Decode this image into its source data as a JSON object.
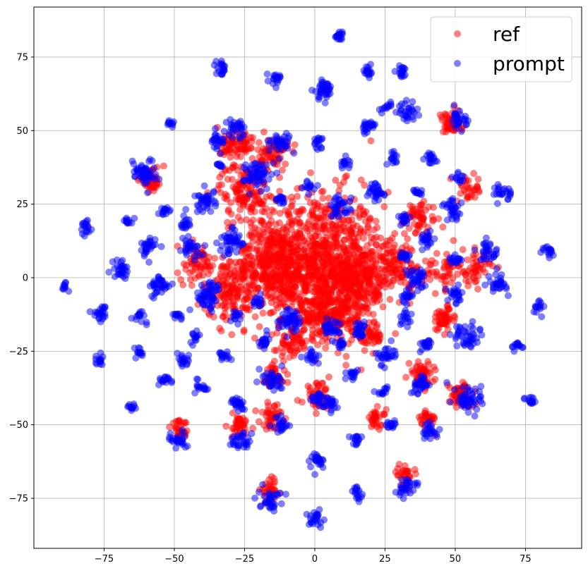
{
  "chart_data": {
    "type": "scatter",
    "title": "",
    "xlabel": "",
    "ylabel": "",
    "xlim": [
      -100,
      95
    ],
    "ylim": [
      -92,
      92
    ],
    "grid": true,
    "legend_position": "top-right",
    "x_ticks": [
      -75,
      -50,
      -25,
      0,
      25,
      50,
      75
    ],
    "y_ticks": [
      -75,
      -50,
      -25,
      0,
      25,
      50,
      75
    ],
    "x_tick_labels": [
      "−75",
      "−50",
      "−25",
      "0",
      "25",
      "50",
      "75"
    ],
    "y_tick_labels": [
      "−75",
      "−50",
      "−25",
      "0",
      "25",
      "50",
      "75"
    ],
    "series": [
      {
        "name": "ref",
        "color": "#ff0000",
        "alpha": 0.5,
        "clusters": [
          {
            "x": 0,
            "y": 5,
            "r": 22,
            "n": 900
          },
          {
            "x": -15,
            "y": 5,
            "r": 12,
            "n": 300
          },
          {
            "x": 15,
            "y": 0,
            "r": 12,
            "n": 300
          },
          {
            "x": 5,
            "y": -12,
            "r": 10,
            "n": 200
          },
          {
            "x": -25,
            "y": 30,
            "r": 8,
            "n": 120
          },
          {
            "x": -28,
            "y": 45,
            "r": 6,
            "n": 80
          },
          {
            "x": -15,
            "y": 42,
            "r": 5,
            "n": 60
          },
          {
            "x": -30,
            "y": -5,
            "r": 9,
            "n": 120
          },
          {
            "x": -42,
            "y": 5,
            "r": 6,
            "n": 60
          },
          {
            "x": 30,
            "y": 5,
            "r": 7,
            "n": 80
          },
          {
            "x": 37,
            "y": 20,
            "r": 6,
            "n": 60
          },
          {
            "x": 45,
            "y": 3,
            "r": 6,
            "n": 50
          },
          {
            "x": 48,
            "y": 52,
            "r": 4,
            "n": 50
          },
          {
            "x": 52,
            "y": -40,
            "r": 4,
            "n": 60
          },
          {
            "x": 57,
            "y": 3,
            "r": 5,
            "n": 50
          },
          {
            "x": 46,
            "y": -14,
            "r": 4,
            "n": 50
          },
          {
            "x": 38,
            "y": -33,
            "r": 4,
            "n": 50
          },
          {
            "x": -15,
            "y": -47,
            "r": 4,
            "n": 40
          },
          {
            "x": -27,
            "y": -50,
            "r": 4,
            "n": 40
          },
          {
            "x": -15,
            "y": -34,
            "r": 4,
            "n": 40
          },
          {
            "x": -58,
            "y": 33,
            "r": 4,
            "n": 40
          },
          {
            "x": 22,
            "y": -48,
            "r": 3,
            "n": 30
          },
          {
            "x": 32,
            "y": -67,
            "r": 3,
            "n": 30
          },
          {
            "x": -16,
            "y": -72,
            "r": 3,
            "n": 30
          },
          {
            "x": 1,
            "y": -40,
            "r": 4,
            "n": 40
          },
          {
            "x": 40,
            "y": -48,
            "r": 3,
            "n": 30
          },
          {
            "x": 55,
            "y": 30,
            "r": 4,
            "n": 30
          },
          {
            "x": -48,
            "y": -52,
            "r": 3,
            "n": 30
          },
          {
            "x": -8,
            "y": -22,
            "r": 5,
            "n": 50
          },
          {
            "x": 20,
            "y": -20,
            "r": 4,
            "n": 40
          }
        ]
      },
      {
        "name": "prompt",
        "color": "#0000ff",
        "alpha": 0.5,
        "clusters": [
          {
            "x": 9,
            "y": 82,
            "r": 1.5,
            "n": 18
          },
          {
            "x": -33,
            "y": 71,
            "r": 2,
            "n": 20
          },
          {
            "x": -14,
            "y": 68,
            "r": 1.8,
            "n": 18
          },
          {
            "x": 19,
            "y": 70,
            "r": 1.8,
            "n": 18
          },
          {
            "x": 31,
            "y": 70,
            "r": 1.8,
            "n": 18
          },
          {
            "x": 3,
            "y": 64,
            "r": 3.2,
            "n": 40
          },
          {
            "x": 33,
            "y": 56,
            "r": 2.8,
            "n": 30
          },
          {
            "x": 26,
            "y": 58,
            "r": 1.6,
            "n": 12
          },
          {
            "x": 51,
            "y": 54,
            "r": 2.8,
            "n": 30
          },
          {
            "x": -51,
            "y": 52,
            "r": 1.4,
            "n": 10
          },
          {
            "x": -28,
            "y": 51,
            "r": 2.8,
            "n": 30
          },
          {
            "x": -35,
            "y": 47,
            "r": 2.5,
            "n": 24
          },
          {
            "x": 19,
            "y": 51,
            "r": 2.5,
            "n": 24
          },
          {
            "x": -12,
            "y": 46,
            "r": 3.2,
            "n": 36
          },
          {
            "x": 1,
            "y": 46,
            "r": 1.8,
            "n": 16
          },
          {
            "x": 28,
            "y": 41,
            "r": 1.8,
            "n": 14
          },
          {
            "x": 41,
            "y": 41,
            "r": 2.2,
            "n": 18
          },
          {
            "x": -61,
            "y": 36,
            "r": 4,
            "n": 50
          },
          {
            "x": -20,
            "y": 35,
            "r": 4.5,
            "n": 60
          },
          {
            "x": 11,
            "y": 39,
            "r": 1.8,
            "n": 14
          },
          {
            "x": 51,
            "y": 34,
            "r": 1.6,
            "n": 12
          },
          {
            "x": -34,
            "y": 38,
            "r": 1.4,
            "n": 10
          },
          {
            "x": 22,
            "y": 29,
            "r": 3,
            "n": 30
          },
          {
            "x": 37,
            "y": 29,
            "r": 1.6,
            "n": 12
          },
          {
            "x": 67,
            "y": 29,
            "r": 2.5,
            "n": 24
          },
          {
            "x": -39,
            "y": 26,
            "r": 3.5,
            "n": 40
          },
          {
            "x": -2,
            "y": 31,
            "r": 1.8,
            "n": 14
          },
          {
            "x": -12,
            "y": 26,
            "r": 1.8,
            "n": 14
          },
          {
            "x": 9,
            "y": 24,
            "r": 3.5,
            "n": 36
          },
          {
            "x": 49,
            "y": 23,
            "r": 3.2,
            "n": 32
          },
          {
            "x": -53,
            "y": 23,
            "r": 1.8,
            "n": 14
          },
          {
            "x": 32,
            "y": 20,
            "r": 2,
            "n": 16
          },
          {
            "x": -82,
            "y": 17,
            "r": 2.2,
            "n": 18
          },
          {
            "x": -66,
            "y": 19,
            "r": 1.6,
            "n": 12
          },
          {
            "x": -46,
            "y": 18,
            "r": 2,
            "n": 16
          },
          {
            "x": -30,
            "y": 12,
            "r": 4,
            "n": 44
          },
          {
            "x": -44,
            "y": 10,
            "r": 3,
            "n": 30
          },
          {
            "x": -60,
            "y": 10,
            "r": 3,
            "n": 30
          },
          {
            "x": 40,
            "y": 13,
            "r": 2.5,
            "n": 24
          },
          {
            "x": 62,
            "y": 9,
            "r": 3,
            "n": 30
          },
          {
            "x": 83,
            "y": 9,
            "r": 2,
            "n": 16
          },
          {
            "x": -69,
            "y": 3,
            "r": 3,
            "n": 30
          },
          {
            "x": 32,
            "y": 7,
            "r": 2,
            "n": 16
          },
          {
            "x": 50,
            "y": 6,
            "r": 2,
            "n": 16
          },
          {
            "x": -55,
            "y": -3,
            "r": 3.2,
            "n": 36
          },
          {
            "x": -38,
            "y": -6,
            "r": 4.5,
            "n": 56
          },
          {
            "x": 36,
            "y": 0,
            "r": 3.2,
            "n": 34
          },
          {
            "x": 65,
            "y": -2,
            "r": 3,
            "n": 30
          },
          {
            "x": -89,
            "y": -3,
            "r": 1.4,
            "n": 10
          },
          {
            "x": 50,
            "y": -6,
            "r": 2.5,
            "n": 24
          },
          {
            "x": -20,
            "y": -8,
            "r": 1.8,
            "n": 14
          },
          {
            "x": 33,
            "y": -6,
            "r": 2.2,
            "n": 18
          },
          {
            "x": 79,
            "y": -10,
            "r": 2,
            "n": 14
          },
          {
            "x": -76,
            "y": -12,
            "r": 2.5,
            "n": 24
          },
          {
            "x": -8,
            "y": -14,
            "r": 4,
            "n": 44
          },
          {
            "x": -28,
            "y": -13,
            "r": 1.8,
            "n": 14
          },
          {
            "x": 32,
            "y": -14,
            "r": 2,
            "n": 16
          },
          {
            "x": -62,
            "y": -13,
            "r": 2,
            "n": 16
          },
          {
            "x": 6,
            "y": -17,
            "r": 3,
            "n": 30
          },
          {
            "x": 16,
            "y": -18,
            "r": 2.5,
            "n": 24
          },
          {
            "x": 54,
            "y": -20,
            "r": 4,
            "n": 44
          },
          {
            "x": -49,
            "y": -13,
            "r": 1.6,
            "n": 12
          },
          {
            "x": -43,
            "y": -20,
            "r": 2,
            "n": 14
          },
          {
            "x": 72,
            "y": -23,
            "r": 1.8,
            "n": 14
          },
          {
            "x": -18,
            "y": -22,
            "r": 2.2,
            "n": 18
          },
          {
            "x": 9,
            "y": -23,
            "r": 1.6,
            "n": 12
          },
          {
            "x": 40,
            "y": -23,
            "r": 2.2,
            "n": 18
          },
          {
            "x": -62,
            "y": -25,
            "r": 1.8,
            "n": 14
          },
          {
            "x": -47,
            "y": -28,
            "r": 2.2,
            "n": 18
          },
          {
            "x": -32,
            "y": -27,
            "r": 2,
            "n": 16
          },
          {
            "x": 25,
            "y": -26,
            "r": 3,
            "n": 30
          },
          {
            "x": -77,
            "y": -28,
            "r": 1.8,
            "n": 14
          },
          {
            "x": -1,
            "y": -27,
            "r": 2.2,
            "n": 18
          },
          {
            "x": 13,
            "y": -33,
            "r": 2,
            "n": 16
          },
          {
            "x": -15,
            "y": -35,
            "r": 3.5,
            "n": 36
          },
          {
            "x": -53,
            "y": -35,
            "r": 2,
            "n": 16
          },
          {
            "x": -40,
            "y": -37,
            "r": 2,
            "n": 16
          },
          {
            "x": 38,
            "y": -36,
            "r": 3.2,
            "n": 32
          },
          {
            "x": 24,
            "y": -39,
            "r": 1.6,
            "n": 12
          },
          {
            "x": 55,
            "y": -41,
            "r": 4.5,
            "n": 50
          },
          {
            "x": 77,
            "y": -42,
            "r": 1.8,
            "n": 14
          },
          {
            "x": -27,
            "y": -43,
            "r": 2.5,
            "n": 24
          },
          {
            "x": 1,
            "y": -41,
            "r": 2,
            "n": 16
          },
          {
            "x": 5,
            "y": -43,
            "r": 2.8,
            "n": 28
          },
          {
            "x": -65,
            "y": -44,
            "r": 1.6,
            "n": 12
          },
          {
            "x": -12,
            "y": -50,
            "r": 2.5,
            "n": 24
          },
          {
            "x": 27,
            "y": -50,
            "r": 2,
            "n": 16
          },
          {
            "x": 41,
            "y": -52,
            "r": 2.5,
            "n": 24
          },
          {
            "x": 15,
            "y": -55,
            "r": 2,
            "n": 16
          },
          {
            "x": -48,
            "y": -55,
            "r": 2.8,
            "n": 28
          },
          {
            "x": -27,
            "y": -56,
            "r": 3,
            "n": 30
          },
          {
            "x": 1,
            "y": -62,
            "r": 2.5,
            "n": 24
          },
          {
            "x": 32,
            "y": -71,
            "r": 3,
            "n": 30
          },
          {
            "x": 15,
            "y": -73,
            "r": 2,
            "n": 16
          },
          {
            "x": -16,
            "y": -75,
            "r": 3.5,
            "n": 36
          },
          {
            "x": 0,
            "y": -82,
            "r": 2.5,
            "n": 24
          }
        ]
      }
    ]
  }
}
